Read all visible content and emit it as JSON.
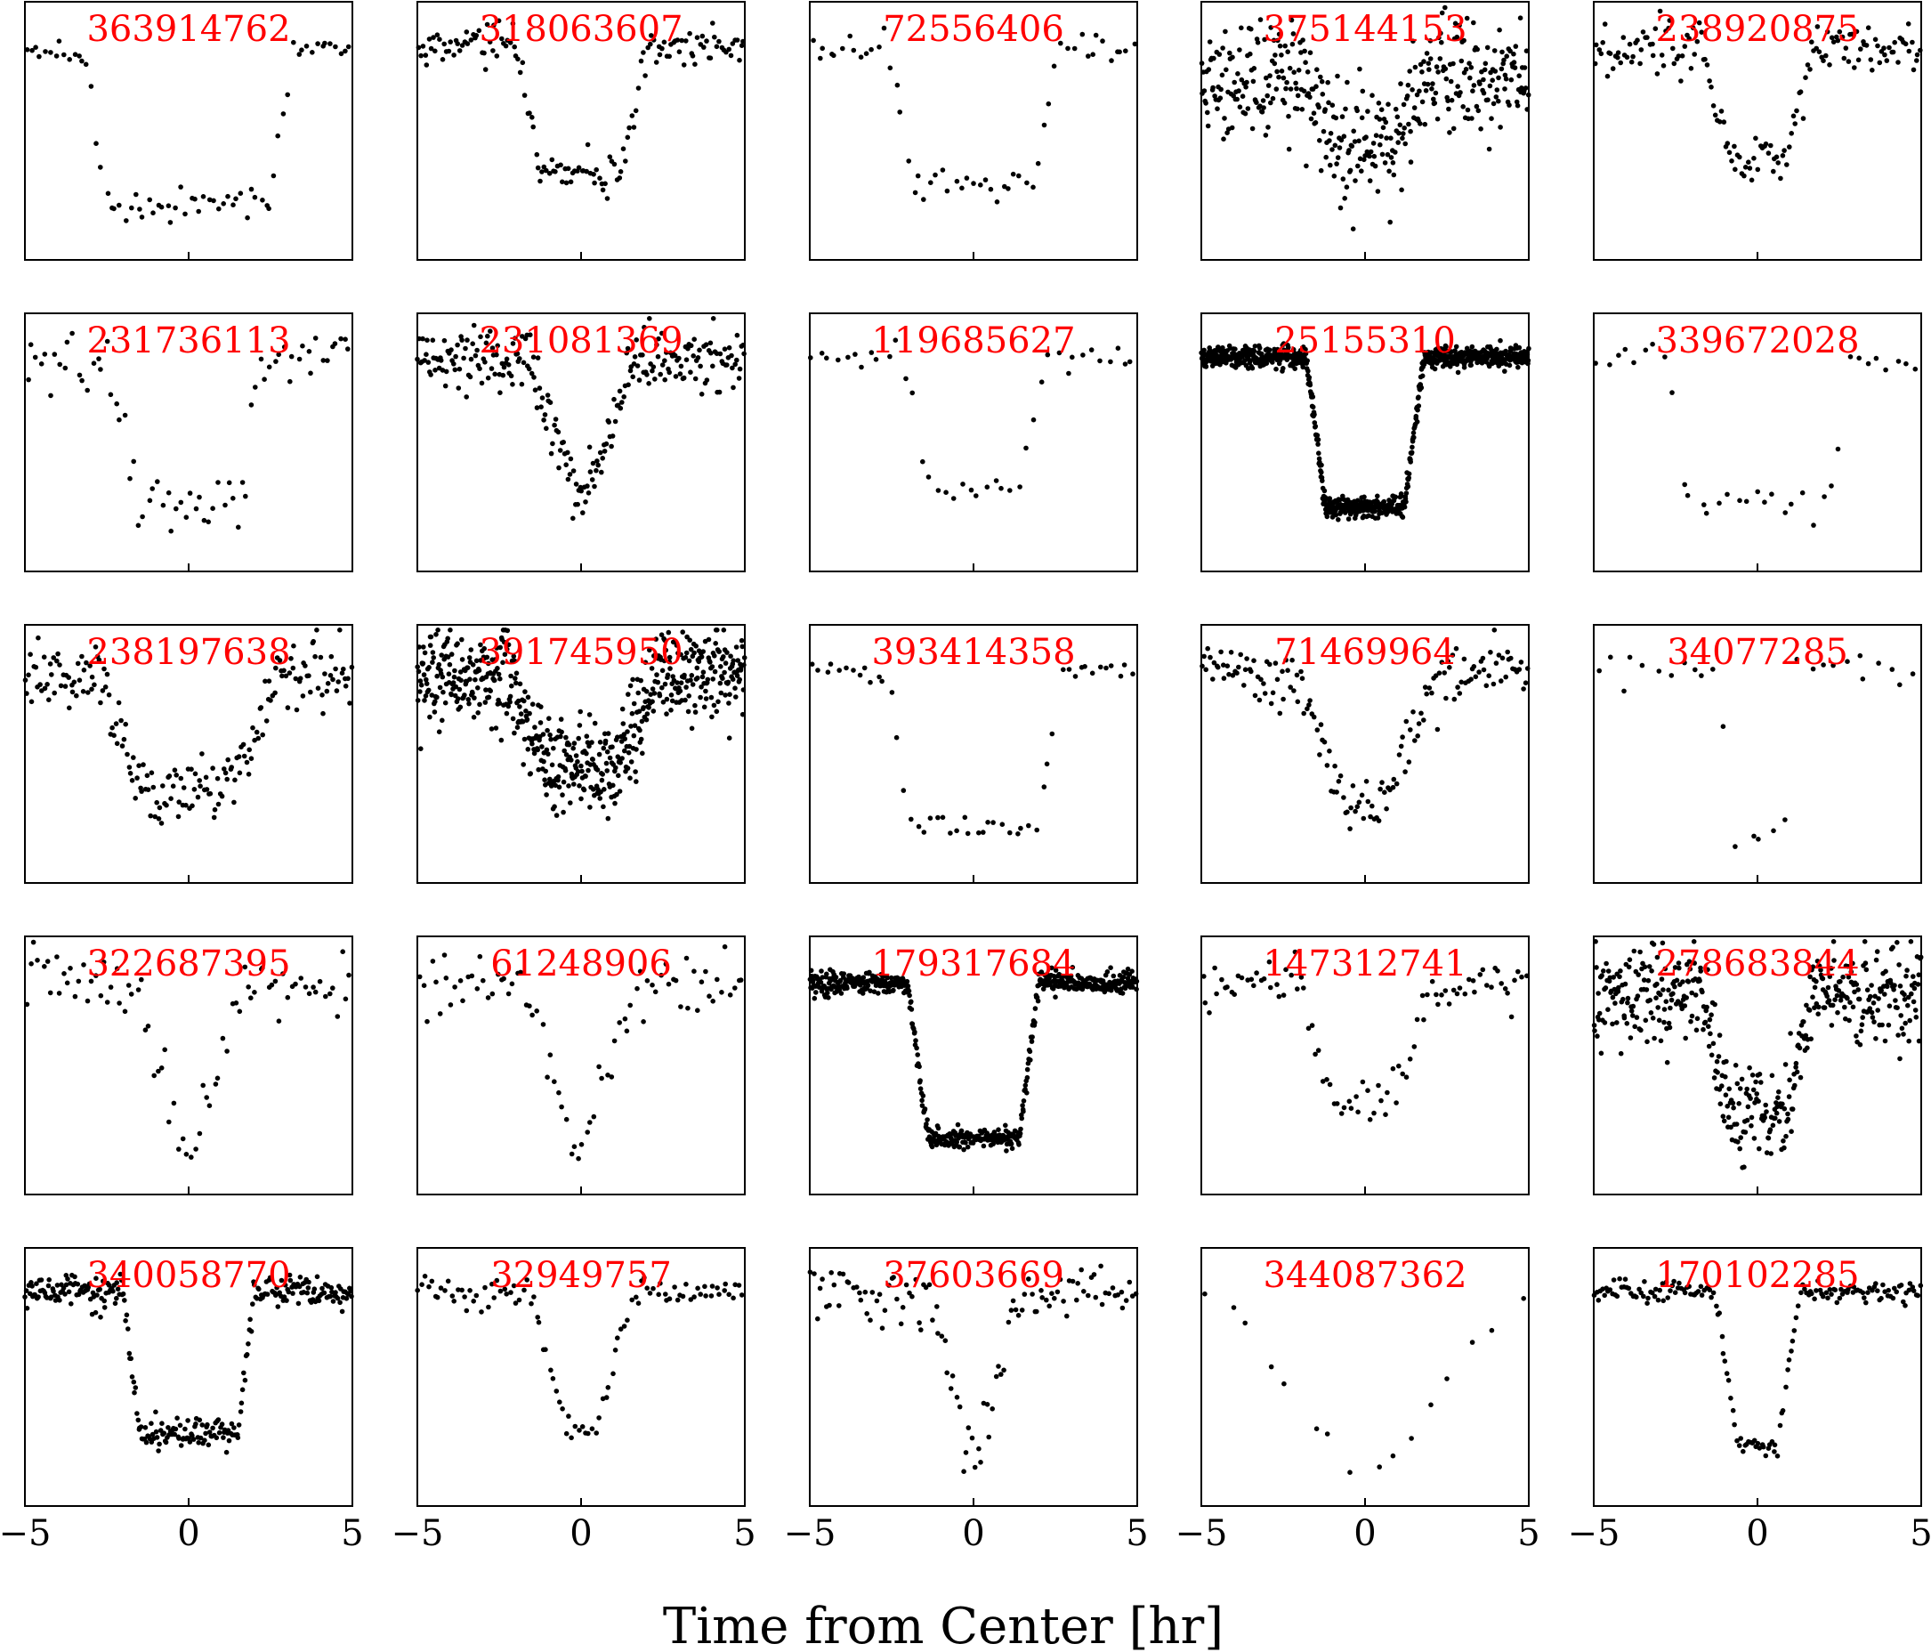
{
  "figure": {
    "xlabel": "Time from Center [hr]",
    "rows": 5,
    "cols": 5,
    "title_color": "#ff0000",
    "point_color": "#000000"
  },
  "chart_data": [
    {
      "type": "scatter",
      "title": "363914762",
      "xlim": [
        -5,
        5
      ],
      "ylim": [
        0,
        1
      ],
      "xticks": [],
      "shape": "box",
      "depth": 0.6,
      "t1": 3.2,
      "t2": 2.5,
      "noise": 0.03,
      "n": 70,
      "baseline": 0.82
    },
    {
      "type": "scatter",
      "title": "318063607",
      "xlim": [
        -5,
        5
      ],
      "ylim": [
        0,
        1
      ],
      "xticks": [],
      "shape": "box",
      "depth": 0.5,
      "t1": 2.0,
      "t2": 1.2,
      "noise": 0.04,
      "n": 150,
      "baseline": 0.83
    },
    {
      "type": "scatter",
      "title": "72556406",
      "xlim": [
        -5,
        5
      ],
      "ylim": [
        0,
        1
      ],
      "xticks": [],
      "shape": "box",
      "depth": 0.53,
      "t1": 2.6,
      "t2": 1.8,
      "noise": 0.03,
      "n": 55,
      "baseline": 0.82
    },
    {
      "type": "scatter",
      "title": "375144153",
      "xlim": [
        -5,
        5
      ],
      "ylim": [
        0,
        1
      ],
      "xticks": [],
      "shape": "box",
      "depth": 0.25,
      "t1": 2.0,
      "t2": 0.9,
      "noise": 0.11,
      "n": 400,
      "baseline": 0.72
    },
    {
      "type": "scatter",
      "title": "238920875",
      "xlim": [
        -5,
        5
      ],
      "ylim": [
        0,
        1
      ],
      "xticks": [],
      "shape": "box",
      "depth": 0.42,
      "t1": 1.7,
      "t2": 0.9,
      "noise": 0.05,
      "n": 160,
      "baseline": 0.82
    },
    {
      "type": "scatter",
      "title": "231736113",
      "xlim": [
        -5,
        5
      ],
      "ylim": [
        0,
        1
      ],
      "xticks": [],
      "shape": "box",
      "depth": 0.55,
      "t1": 2.3,
      "t2": 1.5,
      "noise": 0.06,
      "n": 70,
      "baseline": 0.82
    },
    {
      "type": "scatter",
      "title": "231081369",
      "xlim": [
        -5,
        5
      ],
      "ylim": [
        0,
        1
      ],
      "xticks": [],
      "shape": "v",
      "depth": 0.52,
      "t1": 1.6,
      "t2": 0.2,
      "noise": 0.06,
      "n": 250,
      "baseline": 0.82
    },
    {
      "type": "scatter",
      "title": "119685627",
      "xlim": [
        -5,
        5
      ],
      "ylim": [
        0,
        1
      ],
      "xticks": [],
      "shape": "box",
      "depth": 0.5,
      "t1": 2.2,
      "t2": 1.3,
      "noise": 0.03,
      "n": 40,
      "baseline": 0.82
    },
    {
      "type": "scatter",
      "title": "25155310",
      "xlim": [
        -5,
        5
      ],
      "ylim": [
        0,
        1
      ],
      "xticks": [],
      "shape": "box",
      "depth": 0.58,
      "t1": 1.8,
      "t2": 1.2,
      "noise": 0.02,
      "n": 900,
      "baseline": 0.83
    },
    {
      "type": "scatter",
      "title": "339672028",
      "xlim": [
        -5,
        5
      ],
      "ylim": [
        0,
        1
      ],
      "xticks": [],
      "shape": "box",
      "depth": 0.55,
      "t1": 2.8,
      "t2": 2.2,
      "noise": 0.03,
      "n": 35,
      "baseline": 0.83
    },
    {
      "type": "scatter",
      "title": "238197638",
      "xlim": [
        -5,
        5
      ],
      "ylim": [
        0,
        1
      ],
      "xticks": [],
      "shape": "box",
      "depth": 0.45,
      "t1": 2.8,
      "t2": 1.4,
      "noise": 0.06,
      "n": 200,
      "baseline": 0.82
    },
    {
      "type": "scatter",
      "title": "391745950",
      "xlim": [
        -5,
        5
      ],
      "ylim": [
        0,
        1
      ],
      "xticks": [],
      "shape": "box",
      "depth": 0.35,
      "t1": 2.3,
      "t2": 1.1,
      "noise": 0.09,
      "n": 600,
      "baseline": 0.8
    },
    {
      "type": "scatter",
      "title": "393414358",
      "xlim": [
        -5,
        5
      ],
      "ylim": [
        0,
        1
      ],
      "xticks": [],
      "shape": "box",
      "depth": 0.6,
      "t1": 2.6,
      "t2": 2.0,
      "noise": 0.02,
      "n": 50,
      "baseline": 0.82
    },
    {
      "type": "scatter",
      "title": "71469964",
      "xlim": [
        -5,
        5
      ],
      "ylim": [
        0,
        1
      ],
      "xticks": [],
      "shape": "v",
      "depth": 0.55,
      "t1": 2.2,
      "t2": 0.4,
      "noise": 0.06,
      "n": 160,
      "baseline": 0.82
    },
    {
      "type": "scatter",
      "title": "34077285",
      "xlim": [
        -5,
        5
      ],
      "ylim": [
        0,
        1
      ],
      "xticks": [],
      "shape": "box",
      "depth": 0.65,
      "t1": 1.2,
      "t2": 0.8,
      "noise": 0.03,
      "n": 28,
      "baseline": 0.83
    },
    {
      "type": "scatter",
      "title": "322687395",
      "xlim": [
        -5,
        5
      ],
      "ylim": [
        0,
        1
      ],
      "xticks": [],
      "shape": "v",
      "depth": 0.6,
      "t1": 1.8,
      "t2": 0.2,
      "noise": 0.06,
      "n": 80,
      "baseline": 0.82
    },
    {
      "type": "scatter",
      "title": "61248906",
      "xlim": [
        -5,
        5
      ],
      "ylim": [
        0,
        1
      ],
      "xticks": [],
      "shape": "v",
      "depth": 0.6,
      "t1": 1.8,
      "t2": 0.2,
      "noise": 0.06,
      "n": 80,
      "baseline": 0.82
    },
    {
      "type": "scatter",
      "title": "179317684",
      "xlim": [
        -5,
        5
      ],
      "ylim": [
        0,
        1
      ],
      "xticks": [],
      "shape": "box",
      "depth": 0.6,
      "t1": 2.0,
      "t2": 1.4,
      "noise": 0.02,
      "n": 600,
      "baseline": 0.82
    },
    {
      "type": "scatter",
      "title": "147312741",
      "xlim": [
        -5,
        5
      ],
      "ylim": [
        0,
        1
      ],
      "xticks": [],
      "shape": "box",
      "depth": 0.45,
      "t1": 2.0,
      "t2": 1.0,
      "noise": 0.05,
      "n": 90,
      "baseline": 0.82
    },
    {
      "type": "scatter",
      "title": "278683844",
      "xlim": [
        -5,
        5
      ],
      "ylim": [
        0,
        1
      ],
      "xticks": [],
      "shape": "box",
      "depth": 0.45,
      "t1": 1.7,
      "t2": 0.9,
      "noise": 0.1,
      "n": 450,
      "baseline": 0.78
    },
    {
      "type": "scatter",
      "title": "340058770",
      "xlim": [
        -5,
        5
      ],
      "ylim": [
        0,
        1
      ],
      "xticks": [
        -5,
        0,
        5
      ],
      "shape": "box",
      "depth": 0.55,
      "t1": 2.0,
      "t2": 1.5,
      "noise": 0.03,
      "n": 300,
      "baseline": 0.83
    },
    {
      "type": "scatter",
      "title": "32949757",
      "xlim": [
        -5,
        5
      ],
      "ylim": [
        0,
        1
      ],
      "xticks": [
        -5,
        0,
        5
      ],
      "shape": "v",
      "depth": 0.55,
      "t1": 1.6,
      "t2": 0.4,
      "noise": 0.03,
      "n": 100,
      "baseline": 0.83
    },
    {
      "type": "scatter",
      "title": "37603669",
      "xlim": [
        -5,
        5
      ],
      "ylim": [
        0,
        1
      ],
      "xticks": [
        -5,
        0,
        5
      ],
      "shape": "v",
      "depth": 0.6,
      "t1": 1.3,
      "t2": 0.2,
      "noise": 0.05,
      "n": 110,
      "baseline": 0.82
    },
    {
      "type": "scatter",
      "title": "344087362",
      "xlim": [
        -5,
        5
      ],
      "ylim": [
        0,
        1
      ],
      "xticks": [
        -5,
        0,
        5
      ],
      "shape": "v",
      "depth": 0.7,
      "t1": 4.5,
      "t2": 0.5,
      "noise": 0.02,
      "n": 16,
      "baseline": 0.82
    },
    {
      "type": "scatter",
      "title": "170102285",
      "xlim": [
        -5,
        5
      ],
      "ylim": [
        0,
        1
      ],
      "xticks": [
        -5,
        0,
        5
      ],
      "shape": "box",
      "depth": 0.6,
      "t1": 1.3,
      "t2": 0.6,
      "noise": 0.02,
      "n": 170,
      "baseline": 0.83
    }
  ]
}
